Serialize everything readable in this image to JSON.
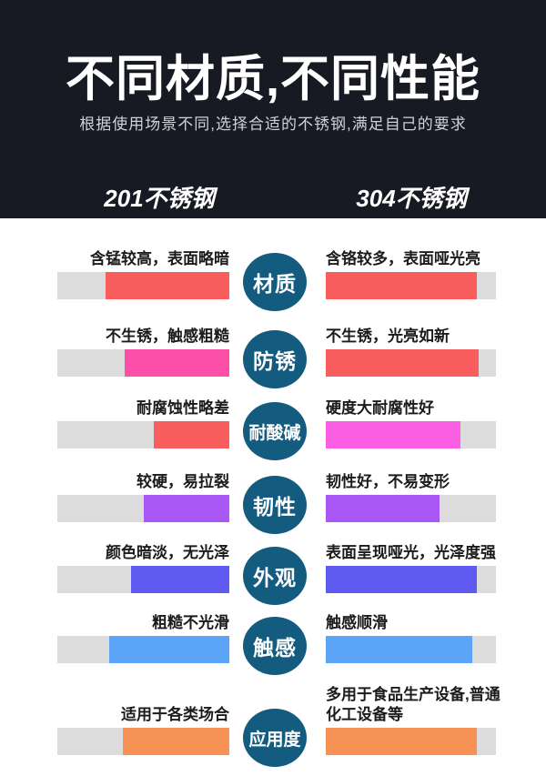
{
  "header": {
    "title": "不同材质,不同性能",
    "subtitle": "根据使用场景不同,选择合适的不锈钢,满足自己的要求",
    "left_column": "201不锈钢",
    "right_column": "304不锈钢"
  },
  "colors": {
    "header_bg": "#171a22",
    "circle": "#145b80",
    "track": "#dcdcdc"
  },
  "rows": [
    {
      "category": "材质",
      "left": {
        "label": "含锰较高，表面略暗",
        "fill_percent": 72,
        "color": "#f95e5e"
      },
      "right": {
        "label": "含铬较多，表面哑光亮",
        "fill_percent": 89,
        "color": "#f95e5e"
      }
    },
    {
      "category": "防锈",
      "left": {
        "label": "不生锈，触感粗糙",
        "fill_percent": 61,
        "color": "#fc50a8"
      },
      "right": {
        "label": "不生锈，光亮如新",
        "fill_percent": 90,
        "color": "#f95e5e"
      }
    },
    {
      "category": "耐酸碱",
      "left": {
        "label": "耐腐蚀性略差",
        "fill_percent": 44,
        "color": "#f95e5e"
      },
      "right": {
        "label": "硬度大耐腐性好",
        "fill_percent": 79,
        "color": "#fb5ee2"
      }
    },
    {
      "category": "韧性",
      "left": {
        "label": "较硬，易拉裂",
        "fill_percent": 50,
        "color": "#a958f5"
      },
      "right": {
        "label": "韧性好，不易变形",
        "fill_percent": 67,
        "color": "#a958f5"
      }
    },
    {
      "category": "外观",
      "left": {
        "label": "颜色暗淡，无光泽",
        "fill_percent": 57,
        "color": "#5f5af0"
      },
      "right": {
        "label": "表面呈现哑光，光泽度强",
        "fill_percent": 89,
        "color": "#5f5af0"
      }
    },
    {
      "category": "触感",
      "left": {
        "label": "粗糙不光滑",
        "fill_percent": 70,
        "color": "#5ba4f8"
      },
      "right": {
        "label": "触感顺滑",
        "fill_percent": 86,
        "color": "#5ba4f8"
      }
    },
    {
      "category": "应用度",
      "left": {
        "label": "适用于各类场合",
        "fill_percent": 62,
        "color": "#f79257"
      },
      "right": {
        "label": "多用于食品生产设备,普通化工设备等",
        "fill_percent": 89,
        "color": "#f79257"
      }
    }
  ]
}
